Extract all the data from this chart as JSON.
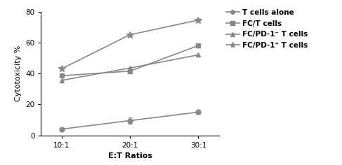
{
  "x_labels": [
    "10:1",
    "20:1",
    "30:1"
  ],
  "x_values": [
    0,
    1,
    2
  ],
  "series": [
    {
      "label": "T cells alone",
      "y": [
        4.0,
        9.5,
        15.0
      ],
      "yerr": [
        0.5,
        2.0,
        1.0
      ],
      "color": "#888888",
      "marker": "o",
      "markersize": 5,
      "linewidth": 1.2
    },
    {
      "label": "FC/T cells",
      "y": [
        38.5,
        41.5,
        58.0
      ],
      "yerr": [
        0.0,
        0.0,
        0.0
      ],
      "color": "#888888",
      "marker": "s",
      "markersize": 5,
      "linewidth": 1.2
    },
    {
      "label": "FC/PD-1⁻ T cells",
      "y": [
        35.5,
        43.5,
        52.0
      ],
      "yerr": [
        0.0,
        0.0,
        0.0
      ],
      "color": "#888888",
      "marker": "^",
      "markersize": 5,
      "linewidth": 1.2
    },
    {
      "label": "FC/PD-1⁺ T cells",
      "y": [
        43.0,
        65.0,
        74.5
      ],
      "yerr": [
        0.0,
        0.0,
        0.0
      ],
      "color": "#888888",
      "marker": "^",
      "markersize": 5,
      "linewidth": 1.2
    }
  ],
  "xlabel": "E:T Ratios",
  "ylabel": "Cytotoxicity %",
  "ylim": [
    0,
    80
  ],
  "yticks": [
    0,
    20,
    40,
    60,
    80
  ],
  "background_color": "#ffffff",
  "legend_fontsize": 7.5,
  "axis_fontsize": 8,
  "tick_fontsize": 7.5
}
